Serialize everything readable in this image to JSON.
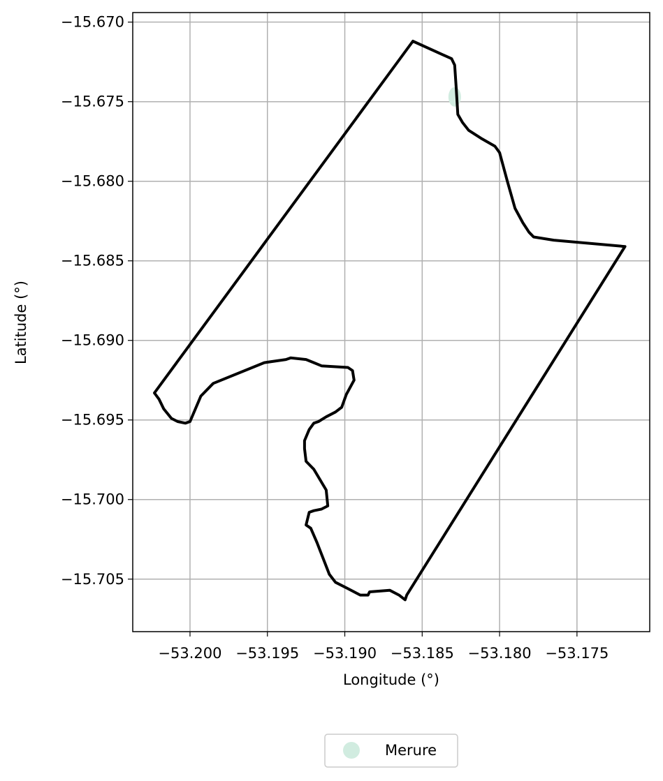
{
  "chart_data": {
    "type": "map",
    "xlabel": "Longitude (°)",
    "ylabel": "Latitude (°)",
    "xlim": [
      -53.2037,
      -53.1703
    ],
    "ylim": [
      -15.7083,
      -15.6694
    ],
    "grid": true,
    "x_ticks": [
      -53.2,
      -53.195,
      -53.19,
      -53.185,
      -53.18,
      -53.175
    ],
    "x_tick_labels": [
      "−53.200",
      "−53.195",
      "−53.190",
      "−53.185",
      "−53.180",
      "−53.175"
    ],
    "y_ticks": [
      -15.67,
      -15.675,
      -15.68,
      -15.685,
      -15.69,
      -15.695,
      -15.7,
      -15.705
    ],
    "y_tick_labels": [
      "−15.670",
      "−15.675",
      "−15.680",
      "−15.685",
      "−15.690",
      "−15.695",
      "−15.700",
      "−15.705"
    ],
    "legend": {
      "placement": "bottom-center-outside",
      "entries": [
        {
          "label": "Merure",
          "color": "#d1ece0"
        }
      ]
    },
    "boundary": {
      "color": "#000000",
      "points": [
        [
          -53.1856,
          -15.6712
        ],
        [
          -53.1831,
          -15.6723
        ],
        [
          -53.1829,
          -15.6727
        ],
        [
          -53.1828,
          -15.6742
        ],
        [
          -53.1827,
          -15.6758
        ],
        [
          -53.1824,
          -15.6763
        ],
        [
          -53.182,
          -15.6768
        ],
        [
          -53.1812,
          -15.6773
        ],
        [
          -53.1803,
          -15.6778
        ],
        [
          -53.18,
          -15.6782
        ],
        [
          -53.1795,
          -15.68
        ],
        [
          -53.179,
          -15.6817
        ],
        [
          -53.1785,
          -15.6826
        ],
        [
          -53.1781,
          -15.6832
        ],
        [
          -53.1778,
          -15.6835
        ],
        [
          -53.1765,
          -15.6837
        ],
        [
          -53.1719,
          -15.6841
        ],
        [
          -53.186,
          -15.706
        ],
        [
          -53.1861,
          -15.7063
        ],
        [
          -53.1865,
          -15.706
        ],
        [
          -53.1871,
          -15.7057
        ],
        [
          -53.1884,
          -15.7058
        ],
        [
          -53.1885,
          -15.706
        ],
        [
          -53.189,
          -15.706
        ],
        [
          -53.1898,
          -15.7056
        ],
        [
          -53.1906,
          -15.7052
        ],
        [
          -53.191,
          -15.7047
        ],
        [
          -53.1918,
          -15.7027
        ],
        [
          -53.1922,
          -15.7018
        ],
        [
          -53.1925,
          -15.7016
        ],
        [
          -53.1923,
          -15.7008
        ],
        [
          -53.192,
          -15.7007
        ],
        [
          -53.1915,
          -15.7006
        ],
        [
          -53.1911,
          -15.7004
        ],
        [
          -53.1912,
          -15.6994
        ],
        [
          -53.192,
          -15.6981
        ],
        [
          -53.1925,
          -15.6976
        ],
        [
          -53.1926,
          -15.6968
        ],
        [
          -53.1926,
          -15.6963
        ],
        [
          -53.1923,
          -15.6956
        ],
        [
          -53.192,
          -15.6952
        ],
        [
          -53.1917,
          -15.6951
        ],
        [
          -53.1912,
          -15.6948
        ],
        [
          -53.1906,
          -15.6945
        ],
        [
          -53.1902,
          -15.6942
        ],
        [
          -53.1899,
          -15.6934
        ],
        [
          -53.1894,
          -15.6925
        ],
        [
          -53.1895,
          -15.6919
        ],
        [
          -53.1898,
          -15.6917
        ],
        [
          -53.1915,
          -15.6916
        ],
        [
          -53.192,
          -15.6914
        ],
        [
          -53.1925,
          -15.6912
        ],
        [
          -53.1935,
          -15.6911
        ],
        [
          -53.1938,
          -15.6912
        ],
        [
          -53.1952,
          -15.6914
        ],
        [
          -53.1985,
          -15.6927
        ],
        [
          -53.1993,
          -15.6935
        ],
        [
          -53.2,
          -15.6951
        ],
        [
          -53.2003,
          -15.6952
        ],
        [
          -53.2008,
          -15.6951
        ],
        [
          -53.2012,
          -15.6949
        ],
        [
          -53.2017,
          -15.6943
        ],
        [
          -53.202,
          -15.6937
        ],
        [
          -53.2023,
          -15.6933
        ],
        [
          -53.1856,
          -15.6712
        ]
      ]
    },
    "highlight_points": [
      {
        "series": "Merure",
        "x": -53.1829,
        "y": -15.6747
      }
    ]
  }
}
